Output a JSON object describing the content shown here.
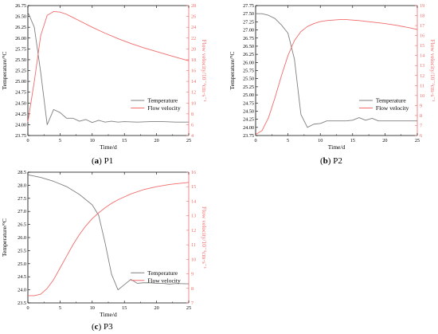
{
  "chart_data": [
    {
      "type": "line",
      "caption_letter": "a",
      "caption_name": "P1",
      "xlabel": "Time/d",
      "ylabel_left": "Temperature/°C",
      "ylabel_right": "Flow velocity/10⁻³cm·s⁻¹",
      "xlim": [
        0,
        25
      ],
      "ylim_left": [
        23.75,
        26.75
      ],
      "ylim_right": [
        4,
        28
      ],
      "x_ticks": [
        0,
        5,
        10,
        15,
        20,
        25
      ],
      "y_left_ticks": [
        23.75,
        24.0,
        24.25,
        24.5,
        24.75,
        25.0,
        25.25,
        25.5,
        25.75,
        26.0,
        26.25,
        26.5,
        26.75
      ],
      "y_right_ticks": [
        4,
        6,
        8,
        10,
        12,
        14,
        16,
        18,
        20,
        22,
        24,
        26,
        28
      ],
      "legend_position": "center-right",
      "series": [
        {
          "name": "Temperature",
          "axis": "left",
          "color": "#7f7f7f",
          "points": [
            [
              0,
              26.6
            ],
            [
              1,
              26.25
            ],
            [
              2,
              25.2
            ],
            [
              3,
              24.0
            ],
            [
              4,
              24.35
            ],
            [
              5,
              24.28
            ],
            [
              6,
              24.15
            ],
            [
              7,
              24.15
            ],
            [
              8,
              24.08
            ],
            [
              9,
              24.12
            ],
            [
              10,
              24.05
            ],
            [
              11,
              24.1
            ],
            [
              12,
              24.06
            ],
            [
              13,
              24.08
            ],
            [
              14,
              24.06
            ],
            [
              15,
              24.07
            ],
            [
              17,
              24.06
            ],
            [
              19,
              24.07
            ],
            [
              21,
              24.07
            ],
            [
              23,
              24.06
            ],
            [
              25,
              24.06
            ]
          ]
        },
        {
          "name": "Flow velocity",
          "axis": "right",
          "color": "#f26b6b",
          "points": [
            [
              0,
              6.5
            ],
            [
              1,
              14.0
            ],
            [
              2,
              22.5
            ],
            [
              3,
              26.2
            ],
            [
              4,
              26.9
            ],
            [
              5,
              26.8
            ],
            [
              6,
              26.4
            ],
            [
              7,
              25.8
            ],
            [
              8,
              25.2
            ],
            [
              10,
              24.0
            ],
            [
              12,
              22.9
            ],
            [
              14,
              21.9
            ],
            [
              16,
              21.0
            ],
            [
              18,
              20.2
            ],
            [
              20,
              19.5
            ],
            [
              22,
              18.8
            ],
            [
              25,
              17.8
            ]
          ]
        }
      ]
    },
    {
      "type": "line",
      "caption_letter": "b",
      "caption_name": "P2",
      "xlabel": "Time/d",
      "ylabel_left": "Temperature/°C",
      "ylabel_right": "Flow velocity/10⁻³cm·s⁻¹",
      "xlim": [
        0,
        25
      ],
      "ylim_left": [
        23.75,
        27.75
      ],
      "ylim_right": [
        6,
        19
      ],
      "x_ticks": [
        0,
        5,
        10,
        15,
        20,
        25
      ],
      "y_left_ticks": [
        23.75,
        24.0,
        24.25,
        24.5,
        24.75,
        25.0,
        25.25,
        25.5,
        25.75,
        26.0,
        26.25,
        26.5,
        26.75,
        27.0,
        27.25,
        27.5,
        27.75
      ],
      "y_right_ticks": [
        6,
        7,
        8,
        9,
        10,
        11,
        12,
        13,
        14,
        15,
        16,
        17,
        18,
        19
      ],
      "legend_position": "center-right",
      "series": [
        {
          "name": "Temperature",
          "axis": "left",
          "color": "#7f7f7f",
          "points": [
            [
              0,
              27.5
            ],
            [
              1,
              27.5
            ],
            [
              2,
              27.45
            ],
            [
              3,
              27.35
            ],
            [
              4,
              27.15
            ],
            [
              5,
              26.9
            ],
            [
              6,
              26.1
            ],
            [
              7,
              24.4
            ],
            [
              8,
              24.0
            ],
            [
              9,
              24.1
            ],
            [
              10,
              24.12
            ],
            [
              11,
              24.2
            ],
            [
              12,
              24.2
            ],
            [
              13,
              24.2
            ],
            [
              14,
              24.2
            ],
            [
              15,
              24.22
            ],
            [
              16,
              24.3
            ],
            [
              17,
              24.22
            ],
            [
              18,
              24.28
            ],
            [
              19,
              24.2
            ],
            [
              20,
              24.2
            ],
            [
              22,
              24.2
            ],
            [
              25,
              24.2
            ]
          ]
        },
        {
          "name": "Flow velocity",
          "axis": "right",
          "color": "#f26b6b",
          "points": [
            [
              0,
              6.1
            ],
            [
              1,
              6.5
            ],
            [
              2,
              7.8
            ],
            [
              3,
              9.8
            ],
            [
              4,
              12.0
            ],
            [
              5,
              14.0
            ],
            [
              6,
              15.5
            ],
            [
              7,
              16.4
            ],
            [
              8,
              16.9
            ],
            [
              9,
              17.2
            ],
            [
              10,
              17.4
            ],
            [
              11,
              17.5
            ],
            [
              12,
              17.55
            ],
            [
              13,
              17.6
            ],
            [
              14,
              17.6
            ],
            [
              15,
              17.55
            ],
            [
              16,
              17.5
            ],
            [
              18,
              17.35
            ],
            [
              20,
              17.2
            ],
            [
              22,
              17.0
            ],
            [
              24,
              16.75
            ],
            [
              25,
              16.6
            ]
          ]
        }
      ]
    },
    {
      "type": "line",
      "caption_letter": "c",
      "caption_name": "P3",
      "xlabel": "Time/d",
      "ylabel_left": "Temperature/°C",
      "ylabel_right": "Flow velocity/10⁻³cm·s⁻¹",
      "xlim": [
        0,
        25
      ],
      "ylim_left": [
        23.5,
        28.5
      ],
      "ylim_right": [
        7,
        16
      ],
      "x_ticks": [
        0,
        5,
        10,
        15,
        20,
        25
      ],
      "y_left_ticks": [
        23.5,
        24.0,
        24.5,
        25.0,
        25.5,
        26.0,
        26.5,
        27.0,
        27.5,
        28.0,
        28.5
      ],
      "y_right_ticks": [
        7,
        8,
        9,
        10,
        11,
        12,
        13,
        14,
        15,
        16
      ],
      "legend_position": "bottom-right",
      "series": [
        {
          "name": "Temperature",
          "axis": "left",
          "color": "#7f7f7f",
          "points": [
            [
              0,
              28.4
            ],
            [
              2,
              28.3
            ],
            [
              4,
              28.15
            ],
            [
              6,
              27.95
            ],
            [
              8,
              27.65
            ],
            [
              10,
              27.25
            ],
            [
              11,
              26.85
            ],
            [
              12,
              25.8
            ],
            [
              13,
              24.6
            ],
            [
              14,
              24.0
            ],
            [
              15,
              24.2
            ],
            [
              16,
              24.4
            ],
            [
              17,
              24.25
            ],
            [
              18,
              24.27
            ],
            [
              19,
              24.27
            ],
            [
              20,
              24.25
            ],
            [
              21,
              24.25
            ],
            [
              22,
              24.22
            ],
            [
              23,
              24.24
            ],
            [
              25,
              24.23
            ]
          ]
        },
        {
          "name": "Flow velocity",
          "axis": "right",
          "color": "#f26b6b",
          "points": [
            [
              0,
              7.5
            ],
            [
              1,
              7.5
            ],
            [
              2,
              7.6
            ],
            [
              3,
              8.0
            ],
            [
              4,
              8.6
            ],
            [
              5,
              9.4
            ],
            [
              6,
              10.2
            ],
            [
              7,
              11.0
            ],
            [
              8,
              11.7
            ],
            [
              9,
              12.3
            ],
            [
              10,
              12.8
            ],
            [
              11,
              13.2
            ],
            [
              12,
              13.55
            ],
            [
              13,
              13.85
            ],
            [
              14,
              14.1
            ],
            [
              15,
              14.3
            ],
            [
              16,
              14.5
            ],
            [
              18,
              14.8
            ],
            [
              20,
              15.0
            ],
            [
              22,
              15.15
            ],
            [
              25,
              15.3
            ]
          ]
        }
      ]
    }
  ]
}
